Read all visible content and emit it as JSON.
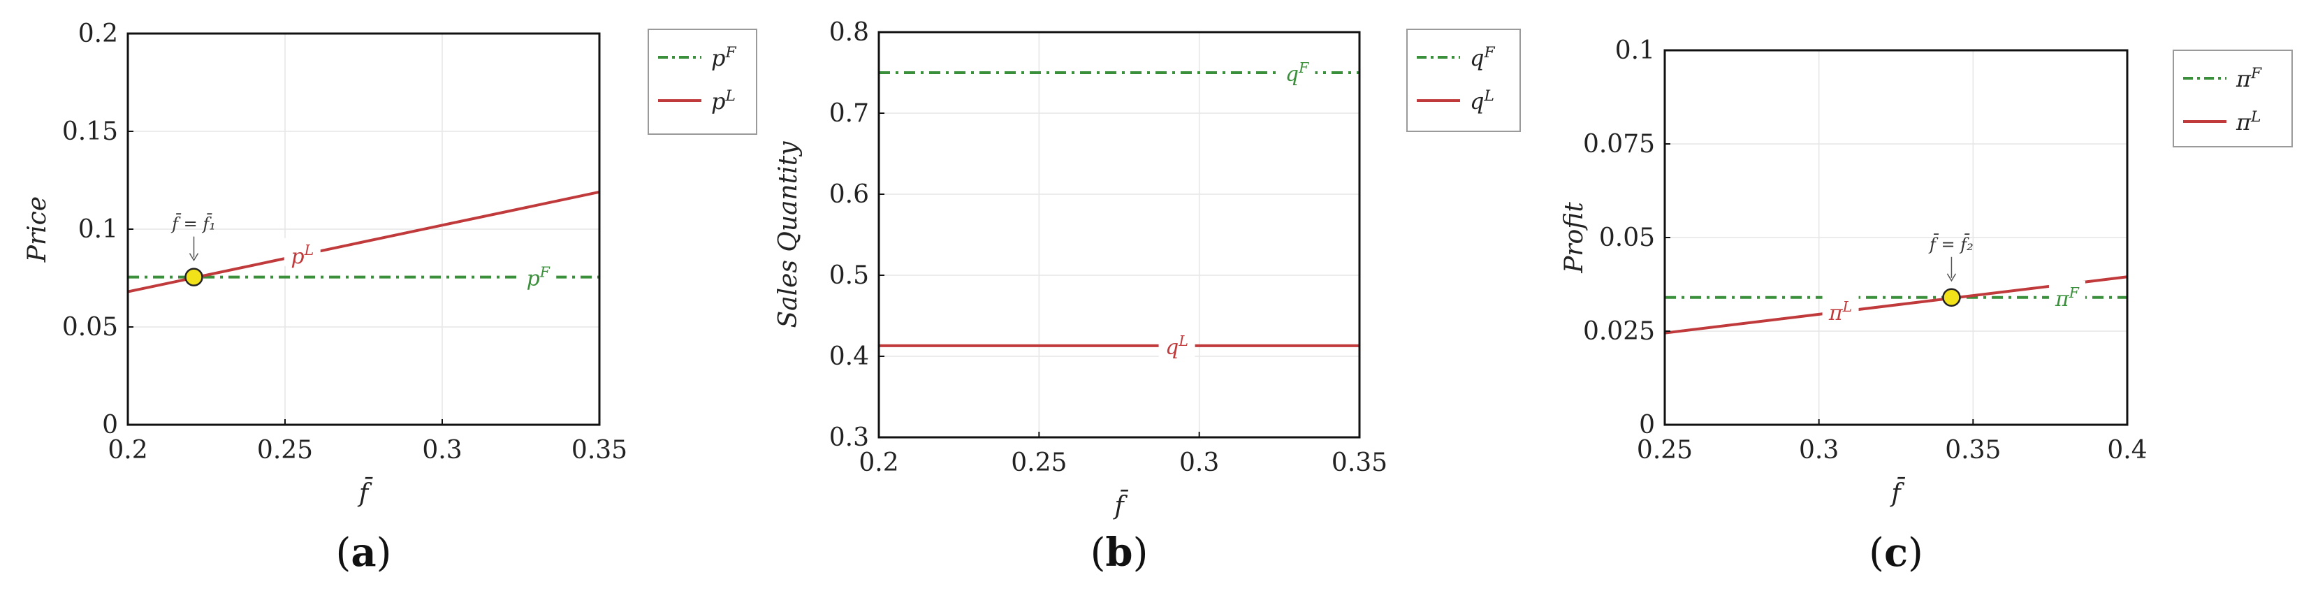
{
  "colors": {
    "pF": "#3a8f3a",
    "pL": "#c0393b",
    "marker": "#f2e21a",
    "grid": "#e6e6e6",
    "frame": "#111111"
  },
  "chart_data": [
    {
      "type": "line",
      "panel": "a",
      "caption": "(a)",
      "xlabel": "f̄",
      "ylabel": "Price",
      "xlim": [
        0.2,
        0.35
      ],
      "ylim": [
        0,
        0.2
      ],
      "xticks": [
        0.2,
        0.25,
        0.3,
        0.35
      ],
      "xtick_labels": [
        "0.2",
        "0.25",
        "0.3",
        "0.35"
      ],
      "yticks": [
        0,
        0.05,
        0.1,
        0.15,
        0.2
      ],
      "ytick_labels": [
        "0",
        "0.05",
        "0.1",
        "0.15",
        "0.2"
      ],
      "grid": true,
      "legend_position": "outside-top-right",
      "series": [
        {
          "name": "p^F",
          "label": "pF",
          "style": "dash-dot",
          "color": "#3a8f3a",
          "x": [
            0.2,
            0.35
          ],
          "y": [
            0.0755,
            0.0755
          ]
        },
        {
          "name": "p^L",
          "label": "pL",
          "style": "solid",
          "color": "#c0393b",
          "x": [
            0.2,
            0.35
          ],
          "y": [
            0.068,
            0.119
          ]
        }
      ],
      "annotations": [
        {
          "kind": "marker",
          "x": 0.221,
          "y": 0.0755,
          "text": "f̄ = f̄₁"
        }
      ]
    },
    {
      "type": "line",
      "panel": "b",
      "caption": "(b)",
      "xlabel": "f̄",
      "ylabel": "Sales Quantity",
      "xlim": [
        0.2,
        0.35
      ],
      "ylim": [
        0.3,
        0.8
      ],
      "xticks": [
        0.2,
        0.25,
        0.3,
        0.35
      ],
      "xtick_labels": [
        "0.2",
        "0.25",
        "0.3",
        "0.35"
      ],
      "yticks": [
        0.3,
        0.4,
        0.5,
        0.6,
        0.7,
        0.8
      ],
      "ytick_labels": [
        "0.3",
        "0.4",
        "0.5",
        "0.6",
        "0.7",
        "0.8"
      ],
      "grid": true,
      "legend_position": "outside-top-right",
      "series": [
        {
          "name": "q^F",
          "label": "qF",
          "style": "dash-dot",
          "color": "#3a8f3a",
          "x": [
            0.2,
            0.35
          ],
          "y": [
            0.75,
            0.75
          ]
        },
        {
          "name": "q^L",
          "label": "qL",
          "style": "solid",
          "color": "#c0393b",
          "x": [
            0.2,
            0.35
          ],
          "y": [
            0.413,
            0.413
          ]
        }
      ],
      "annotations": []
    },
    {
      "type": "line",
      "panel": "c",
      "caption": "(c)",
      "xlabel": "f̄",
      "ylabel": "Profit",
      "xlim": [
        0.25,
        0.4
      ],
      "ylim": [
        0,
        0.1
      ],
      "xticks": [
        0.25,
        0.3,
        0.35,
        0.4
      ],
      "xtick_labels": [
        "0.25",
        "0.3",
        "0.35",
        "0.4"
      ],
      "yticks": [
        0,
        0.025,
        0.05,
        0.075,
        0.1
      ],
      "ytick_labels": [
        "0",
        "0.025",
        "0.05",
        "0.075",
        "0.1"
      ],
      "grid": true,
      "legend_position": "outside-top-right",
      "series": [
        {
          "name": "π^F",
          "label": "πF",
          "style": "dash-dot",
          "color": "#3a8f3a",
          "x": [
            0.25,
            0.4
          ],
          "y": [
            0.034,
            0.034
          ]
        },
        {
          "name": "π^L",
          "label": "πL",
          "style": "solid",
          "color": "#c0393b",
          "x": [
            0.25,
            0.4
          ],
          "y": [
            0.0245,
            0.0395
          ]
        }
      ],
      "annotations": [
        {
          "kind": "marker",
          "x": 0.343,
          "y": 0.034,
          "text": "f̄ = f̄₂"
        }
      ]
    }
  ]
}
